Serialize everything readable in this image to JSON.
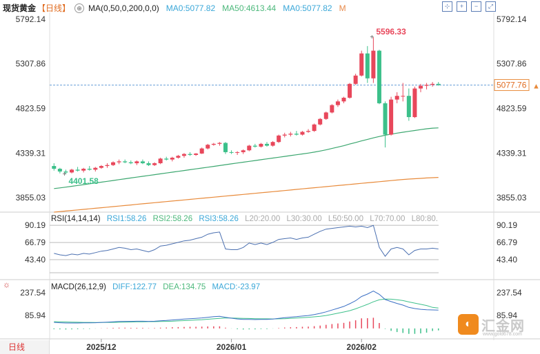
{
  "header": {
    "title": "现货黄金",
    "period": "【日线】",
    "ma_label": "MA(0,50,0,200,0,0)",
    "ma0_a": "MA0:5077.82",
    "ma50": "MA50:4613.44",
    "ma0_b": "MA0:5077.82",
    "m": "M"
  },
  "price_axis": {
    "left": [
      "5792.14",
      "5307.86",
      "4823.59",
      "4339.31",
      "3855.03"
    ],
    "right": [
      "5792.14",
      "5307.86",
      "4823.59",
      "4339.31",
      "3855.03"
    ],
    "current": "5077.76",
    "high_label": "5596.33",
    "low_label": "4401.58"
  },
  "rsi": {
    "label": "RSI(14,14,14)",
    "r1": "RSI1:58.26",
    "r2": "RSI2:58.26",
    "r3": "RSI3:58.26",
    "l20": "L20:20.00",
    "l30": "L30:30.00",
    "l50": "L50:50.00",
    "l70": "L70:70.00",
    "l80": "L80:80.",
    "axis": [
      "90.19",
      "66.79",
      "43.40"
    ]
  },
  "macd": {
    "label": "MACD(26,12,9)",
    "diff": "DIFF:122.77",
    "dea": "DEA:134.75",
    "macd": "MACD:-23.97",
    "axis": [
      "237.54",
      "85.94"
    ]
  },
  "x_axis": [
    "2025/12",
    "2026/01",
    "2026/02"
  ],
  "footer": {
    "period": "日线"
  },
  "logo": {
    "name": "汇金网",
    "url": "www.gold678.com"
  },
  "colors": {
    "up": "#e8475b",
    "down": "#3cc08a",
    "ma50": "#3aa66e",
    "ma200": "#e88a3a",
    "rsi": "#4a6fb0",
    "diff": "#3a6fc4",
    "dea": "#3cc08a"
  },
  "chart_data": {
    "type": "candlestick",
    "title": "现货黄金 日线",
    "ylim": [
      3700,
      5850
    ],
    "candles": [
      [
        4200,
        4230,
        4150,
        4170
      ],
      [
        4170,
        4180,
        4120,
        4140
      ],
      [
        4140,
        4160,
        4110,
        4130
      ],
      [
        4130,
        4170,
        4120,
        4160
      ],
      [
        4160,
        4190,
        4140,
        4150
      ],
      [
        4150,
        4180,
        4130,
        4170
      ],
      [
        4170,
        4200,
        4150,
        4160
      ],
      [
        4160,
        4190,
        4140,
        4180
      ],
      [
        4180,
        4210,
        4170,
        4200
      ],
      [
        4200,
        4230,
        4180,
        4210
      ],
      [
        4210,
        4250,
        4200,
        4240
      ],
      [
        4240,
        4270,
        4220,
        4250
      ],
      [
        4250,
        4270,
        4230,
        4240
      ],
      [
        4240,
        4260,
        4220,
        4230
      ],
      [
        4230,
        4260,
        4210,
        4250
      ],
      [
        4250,
        4270,
        4220,
        4230
      ],
      [
        4230,
        4250,
        4200,
        4210
      ],
      [
        4210,
        4240,
        4200,
        4230
      ],
      [
        4230,
        4290,
        4220,
        4280
      ],
      [
        4280,
        4300,
        4260,
        4270
      ],
      [
        4270,
        4300,
        4250,
        4290
      ],
      [
        4290,
        4320,
        4280,
        4310
      ],
      [
        4310,
        4340,
        4290,
        4330
      ],
      [
        4330,
        4350,
        4310,
        4320
      ],
      [
        4320,
        4340,
        4310,
        4335
      ],
      [
        4335,
        4400,
        4330,
        4390
      ],
      [
        4390,
        4440,
        4380,
        4430
      ],
      [
        4430,
        4450,
        4420,
        4440
      ],
      [
        4440,
        4460,
        4420,
        4450
      ],
      [
        4450,
        4460,
        4330,
        4350
      ],
      [
        4350,
        4370,
        4330,
        4345
      ],
      [
        4345,
        4360,
        4320,
        4350
      ],
      [
        4350,
        4380,
        4330,
        4370
      ],
      [
        4370,
        4430,
        4360,
        4420
      ],
      [
        4420,
        4440,
        4400,
        4410
      ],
      [
        4410,
        4450,
        4400,
        4440
      ],
      [
        4440,
        4460,
        4410,
        4420
      ],
      [
        4420,
        4470,
        4410,
        4460
      ],
      [
        4460,
        4540,
        4450,
        4530
      ],
      [
        4530,
        4560,
        4510,
        4540
      ],
      [
        4540,
        4570,
        4520,
        4550
      ],
      [
        4550,
        4580,
        4530,
        4540
      ],
      [
        4540,
        4580,
        4530,
        4570
      ],
      [
        4570,
        4600,
        4560,
        4580
      ],
      [
        4580,
        4660,
        4570,
        4650
      ],
      [
        4650,
        4720,
        4640,
        4710
      ],
      [
        4710,
        4790,
        4700,
        4780
      ],
      [
        4780,
        4870,
        4770,
        4860
      ],
      [
        4860,
        4920,
        4840,
        4900
      ],
      [
        4900,
        4950,
        4880,
        4940
      ],
      [
        4940,
        5100,
        4930,
        5090
      ],
      [
        5090,
        5200,
        5080,
        5180
      ],
      [
        5180,
        5450,
        5170,
        5420
      ],
      [
        5420,
        5500,
        5100,
        5150
      ],
      [
        5150,
        5596,
        5100,
        5450
      ],
      [
        5450,
        5460,
        4870,
        4880
      ],
      [
        4880,
        4900,
        4401,
        4540
      ],
      [
        4540,
        4950,
        4530,
        4920
      ],
      [
        4920,
        5000,
        4880,
        4960
      ],
      [
        4960,
        5100,
        4900,
        4960
      ],
      [
        4960,
        5040,
        4690,
        4730
      ],
      [
        4730,
        5060,
        4720,
        5040
      ],
      [
        5040,
        5090,
        5000,
        5070
      ],
      [
        5070,
        5100,
        5030,
        5080
      ],
      [
        5080,
        5110,
        5060,
        5090
      ],
      [
        5090,
        5110,
        5070,
        5078
      ]
    ],
    "ma50": [
      3955,
      3963,
      3971,
      3980,
      3989,
      3998,
      4007,
      4016,
      4025,
      4034,
      4043,
      4052,
      4061,
      4070,
      4079,
      4088,
      4097,
      4106,
      4115,
      4124,
      4133,
      4142,
      4151,
      4160,
      4169,
      4178,
      4187,
      4196,
      4205,
      4214,
      4223,
      4232,
      4241,
      4250,
      4259,
      4268,
      4277,
      4286,
      4295,
      4304,
      4313,
      4322,
      4331,
      4340,
      4350,
      4362,
      4375,
      4390,
      4405,
      4420,
      4438,
      4455,
      4472,
      4488,
      4505,
      4520,
      4533,
      4545,
      4556,
      4566,
      4576,
      4585,
      4594,
      4603,
      4610,
      4613
    ],
    "ma200": [
      3700,
      3706,
      3712,
      3718,
      3724,
      3730,
      3736,
      3742,
      3748,
      3754,
      3760,
      3766,
      3772,
      3778,
      3784,
      3790,
      3796,
      3802,
      3808,
      3814,
      3820,
      3826,
      3832,
      3838,
      3844,
      3850,
      3856,
      3862,
      3868,
      3874,
      3880,
      3886,
      3892,
      3898,
      3904,
      3910,
      3916,
      3922,
      3928,
      3934,
      3940,
      3946,
      3952,
      3958,
      3964,
      3970,
      3976,
      3982,
      3988,
      3994,
      4000,
      4006,
      4012,
      4018,
      4024,
      4030,
      4036,
      4042,
      4048,
      4054,
      4058,
      4062,
      4066,
      4070,
      4073,
      4076
    ],
    "rsi": [
      52,
      50,
      49,
      51,
      50,
      52,
      51,
      53,
      55,
      56,
      58,
      60,
      59,
      57,
      58,
      56,
      54,
      57,
      62,
      63,
      65,
      67,
      69,
      70,
      72,
      74,
      78,
      80,
      81,
      58,
      57,
      57,
      60,
      66,
      64,
      66,
      64,
      67,
      71,
      72,
      73,
      71,
      73,
      74,
      78,
      82,
      85,
      86,
      87,
      88,
      89,
      88,
      89,
      87,
      90,
      60,
      48,
      58,
      60,
      58,
      50,
      56,
      58,
      58,
      59,
      58
    ],
    "rsi_ylim": [
      20,
      95
    ],
    "diff": [
      40,
      38,
      36,
      36,
      36,
      37,
      37,
      38,
      40,
      42,
      44,
      46,
      47,
      47,
      48,
      48,
      47,
      48,
      51,
      53,
      56,
      59,
      62,
      65,
      67,
      70,
      74,
      78,
      81,
      74,
      68,
      63,
      60,
      60,
      59,
      60,
      60,
      62,
      67,
      71,
      75,
      78,
      82,
      86,
      92,
      100,
      110,
      122,
      134,
      146,
      164,
      184,
      212,
      228,
      248,
      226,
      192,
      178,
      166,
      155,
      140,
      132,
      127,
      124,
      123,
      122
    ],
    "dea": [
      45,
      44,
      43,
      42,
      41,
      40,
      40,
      39,
      39,
      40,
      40,
      41,
      42,
      43,
      44,
      44,
      45,
      45,
      46,
      47,
      48,
      50,
      52,
      54,
      56,
      58,
      61,
      64,
      67,
      69,
      69,
      68,
      67,
      66,
      65,
      64,
      64,
      63,
      64,
      65,
      67,
      69,
      71,
      74,
      77,
      81,
      86,
      93,
      101,
      109,
      118,
      130,
      145,
      160,
      177,
      190,
      195,
      194,
      190,
      185,
      176,
      168,
      160,
      152,
      140,
      135
    ],
    "macd_ylim": [
      -60,
      260
    ]
  }
}
